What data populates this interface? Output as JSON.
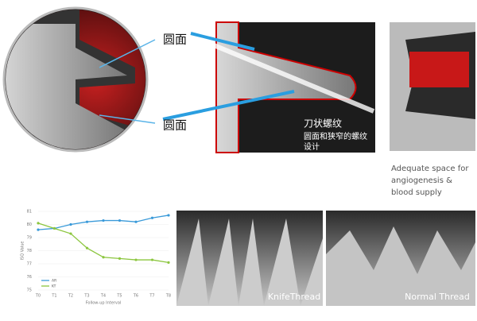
{
  "callouts": {
    "round_top": "圆面",
    "round_bottom": "圆面"
  },
  "knife_caption": {
    "title": "刀状螺纹",
    "line1": "圆面和狭窄的螺纹",
    "line2": "设计"
  },
  "space_caption": [
    "Adequate space for",
    "angiogenesis &",
    "blood supply"
  ],
  "photo_labels": {
    "knife": "KnifeThread",
    "normal": "Normal Thread"
  },
  "chart_data": {
    "type": "line",
    "x_label": "Follow-up Interval",
    "y_label": "ISQ Value",
    "categories": [
      "T0",
      "T1",
      "T2",
      "T3",
      "T4",
      "T5",
      "T6",
      "T7",
      "T8"
    ],
    "series": [
      {
        "name": "AR",
        "color": "#3a9ad9",
        "values": [
          79.6,
          79.7,
          80.0,
          80.2,
          80.3,
          80.3,
          80.2,
          80.5,
          80.7
        ]
      },
      {
        "name": "KT",
        "color": "#8cc63f",
        "values": [
          80.1,
          79.7,
          79.3,
          78.2,
          77.5,
          77.4,
          77.3,
          77.3,
          77.1
        ]
      }
    ],
    "ylim": [
      75,
      81
    ],
    "yticks": [
      75,
      76,
      77,
      78,
      79,
      80,
      81
    ],
    "grid": true,
    "legend": "lower left"
  }
}
